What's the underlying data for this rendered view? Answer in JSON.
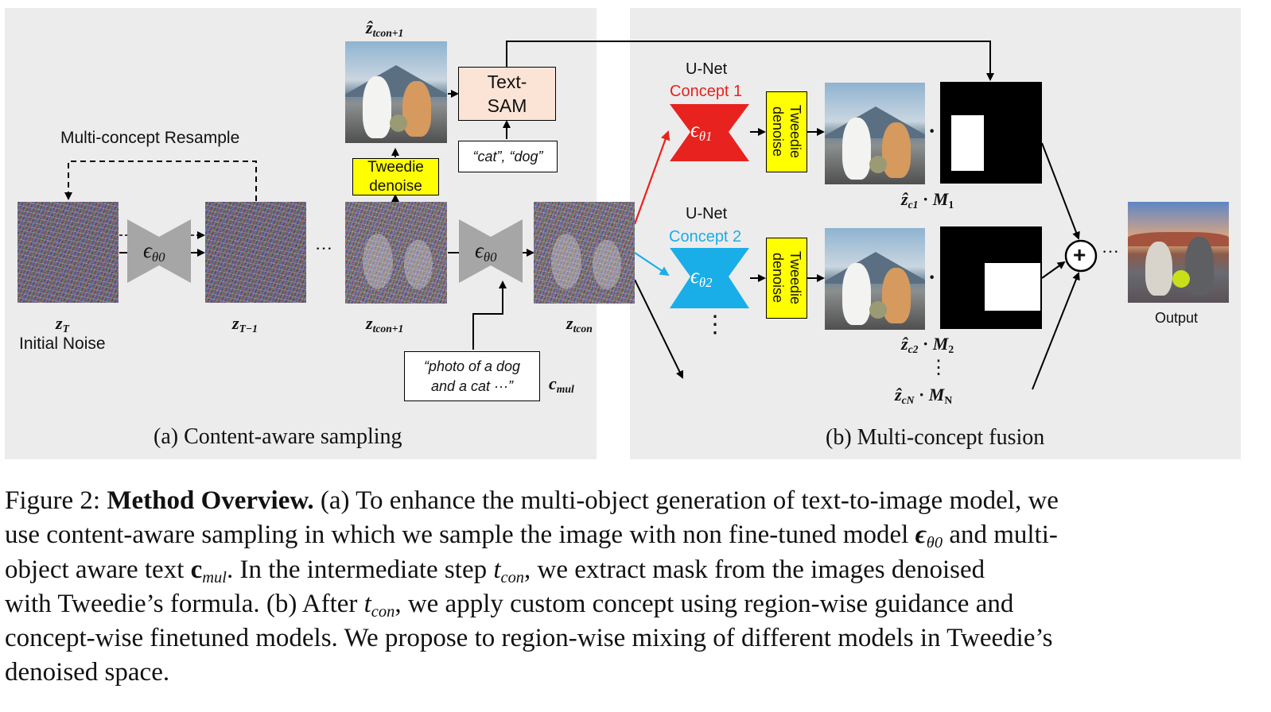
{
  "panel_a": {
    "caption": "(a) Content-aware sampling",
    "resample_label": "Multi-concept Resample",
    "z_T": "z",
    "z_T_sub": "T",
    "initial_noise": "Initial Noise",
    "z_T1": "z",
    "z_T1_sub": "T−1",
    "ellipsis": "···",
    "z_tcon1": "z",
    "z_tcon1_sub": "tcon+1",
    "z_tcon": "z",
    "z_tcon_sub": "tcon",
    "zhat_top": "ẑ",
    "zhat_top_sub": "tcon+1",
    "unet_symbol": "ϵ",
    "unet_sub": "θ0",
    "tweedie_line1": "Tweedie",
    "tweedie_line2": "denoise",
    "textsam_line1": "Text-",
    "textsam_line2": "SAM",
    "textsam_prompt": "“cat”, “dog”",
    "prompt_line1": "“photo of a dog",
    "prompt_line2": "and a cat ···”",
    "c_mul": "c",
    "c_mul_sub": "mul"
  },
  "panel_b": {
    "caption": "(b) Multi-concept fusion",
    "unet_label": "U-Net",
    "concept1": "Concept 1",
    "concept2": "Concept 2",
    "unet1_symbol": "ϵ",
    "unet1_sub": "θ1",
    "unet2_symbol": "ϵ",
    "unet2_sub": "θ2",
    "tweedie_vertical": "Tweedie denoise",
    "dot": "·",
    "vdots": "⋮",
    "zc1_label": "ẑ",
    "zc1_sub": "c1",
    "m1_label": "M",
    "m1_sub": "1",
    "zc2_label": "ẑ",
    "zc2_sub": "c2",
    "m2_label": "M",
    "m2_sub": "2",
    "zcN_label": "ẑ",
    "zcN_sub": "cN",
    "mN_label": "M",
    "mN_sub": "N",
    "plus": "+",
    "ellipsis": "···",
    "output_label": "Output"
  },
  "colors": {
    "panel_bg": "#ececec",
    "tweedie_yellow": "#ffff00",
    "textsam_fill": "#fbe4d6",
    "concept1_red": "#e8221e",
    "concept2_blue": "#1aaee8",
    "unet_gray": "#a6a6a6"
  },
  "caption": {
    "figure_label": "Figure 2:",
    "title": "Method Overview.",
    "l1_rest": "(a) To enhance the multi-object generation of text-to-image model, we",
    "l2_a": "use content-aware sampling in which we sample the image with non fine-tuned model",
    "l2_eps": "ϵ",
    "l2_eps_sub": "θ0",
    "l2_b": "and multi-",
    "l3_a": "object aware text",
    "l3_c": "c",
    "l3_c_sub": "mul",
    "l3_b": ". In the intermediate step",
    "l3_t": "t",
    "l3_t_sub": "con",
    "l3_d": ", we extract mask from the images denoised",
    "l4_a": "with Tweedie’s formula. (b) After",
    "l4_t": "t",
    "l4_t_sub": "con",
    "l4_b": ", we apply custom concept using region-wise guidance and",
    "l5": "concept-wise finetuned models. We propose to region-wise mixing of different models in Tweedie’s",
    "l6": "denoised space."
  }
}
